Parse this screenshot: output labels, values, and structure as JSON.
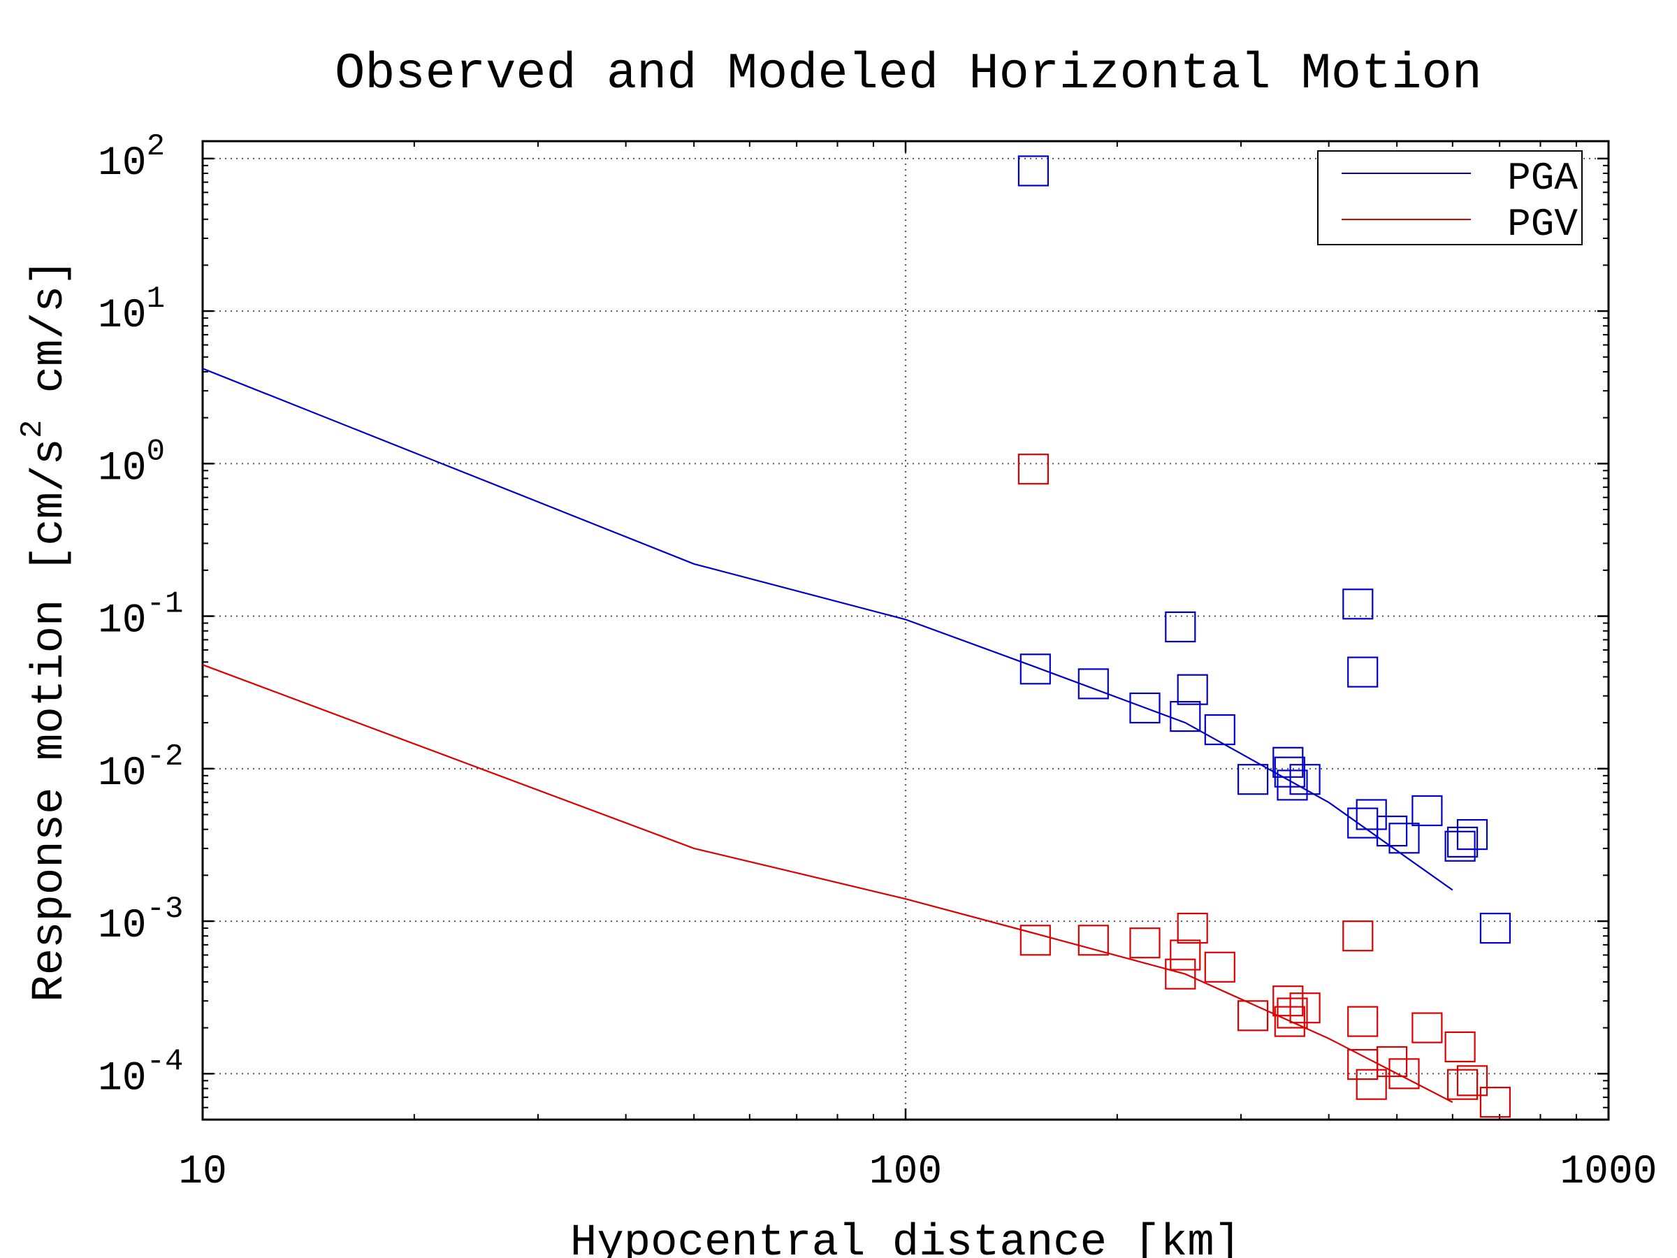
{
  "chart_data": {
    "type": "scatter",
    "title": "Observed and Modeled Horizontal Motion",
    "xlabel": "Hypocentral distance [km]",
    "ylabel_parts": {
      "a": "Response motion [cm/s",
      "sup": "2",
      "b": " cm/s]"
    },
    "x_scale": "log",
    "y_scale": "log",
    "xlim": [
      10,
      1000
    ],
    "ylim": [
      5e-05,
      130
    ],
    "x_ticks": [
      {
        "value": 10,
        "label": "10"
      },
      {
        "value": 100,
        "label": "100"
      },
      {
        "value": 1000,
        "label": "1000"
      }
    ],
    "y_ticks": [
      {
        "value": 100,
        "base": "10",
        "exp": "2"
      },
      {
        "value": 10,
        "base": "10",
        "exp": "1"
      },
      {
        "value": 1,
        "base": "10",
        "exp": "0"
      },
      {
        "value": 0.1,
        "base": "10",
        "exp": "-1"
      },
      {
        "value": 0.01,
        "base": "10",
        "exp": "-2"
      },
      {
        "value": 0.001,
        "base": "10",
        "exp": "-3"
      },
      {
        "value": 0.0001,
        "base": "10",
        "exp": "-4"
      }
    ],
    "grid": true,
    "legend_position": "top-right",
    "series": [
      {
        "name": "PGA",
        "color": "#0000cc",
        "model": {
          "x": [
            10,
            50,
            100,
            150,
            250,
            400,
            600
          ],
          "y": [
            4.2,
            0.22,
            0.095,
            0.048,
            0.02,
            0.006,
            0.0016
          ]
        },
        "observed": [
          {
            "x": 152,
            "y": 83
          },
          {
            "x": 153,
            "y": 0.045
          },
          {
            "x": 185,
            "y": 0.036
          },
          {
            "x": 219,
            "y": 0.025
          },
          {
            "x": 246,
            "y": 0.085
          },
          {
            "x": 250,
            "y": 0.022
          },
          {
            "x": 256,
            "y": 0.033
          },
          {
            "x": 280,
            "y": 0.018
          },
          {
            "x": 312,
            "y": 0.0085
          },
          {
            "x": 350,
            "y": 0.011
          },
          {
            "x": 352,
            "y": 0.0095
          },
          {
            "x": 355,
            "y": 0.0078
          },
          {
            "x": 370,
            "y": 0.0085
          },
          {
            "x": 440,
            "y": 0.12
          },
          {
            "x": 447,
            "y": 0.043
          },
          {
            "x": 447,
            "y": 0.0044
          },
          {
            "x": 460,
            "y": 0.005
          },
          {
            "x": 492,
            "y": 0.0039
          },
          {
            "x": 512,
            "y": 0.0035
          },
          {
            "x": 552,
            "y": 0.0053
          },
          {
            "x": 615,
            "y": 0.0031
          },
          {
            "x": 620,
            "y": 0.0033
          },
          {
            "x": 640,
            "y": 0.0037
          },
          {
            "x": 690,
            "y": 0.0009
          }
        ]
      },
      {
        "name": "PGV",
        "color": "#dd0000",
        "model": {
          "x": [
            10,
            50,
            100,
            150,
            250,
            400,
            600
          ],
          "y": [
            0.048,
            0.003,
            0.0014,
            0.00085,
            0.00045,
            0.00017,
            6.5e-05
          ]
        },
        "observed": [
          {
            "x": 152,
            "y": 0.92
          },
          {
            "x": 153,
            "y": 0.00075
          },
          {
            "x": 185,
            "y": 0.00075
          },
          {
            "x": 219,
            "y": 0.00072
          },
          {
            "x": 246,
            "y": 0.00045
          },
          {
            "x": 250,
            "y": 0.0006
          },
          {
            "x": 256,
            "y": 0.0009
          },
          {
            "x": 280,
            "y": 0.0005
          },
          {
            "x": 312,
            "y": 0.00024
          },
          {
            "x": 350,
            "y": 0.0003
          },
          {
            "x": 352,
            "y": 0.00022
          },
          {
            "x": 355,
            "y": 0.00025
          },
          {
            "x": 370,
            "y": 0.00027
          },
          {
            "x": 440,
            "y": 0.0008
          },
          {
            "x": 447,
            "y": 0.00022
          },
          {
            "x": 447,
            "y": 0.000115
          },
          {
            "x": 460,
            "y": 8.5e-05
          },
          {
            "x": 492,
            "y": 0.00012
          },
          {
            "x": 512,
            "y": 0.0001
          },
          {
            "x": 552,
            "y": 0.0002
          },
          {
            "x": 615,
            "y": 0.00015
          },
          {
            "x": 620,
            "y": 8.5e-05
          },
          {
            "x": 640,
            "y": 9e-05
          },
          {
            "x": 690,
            "y": 6.5e-05
          }
        ]
      }
    ]
  }
}
